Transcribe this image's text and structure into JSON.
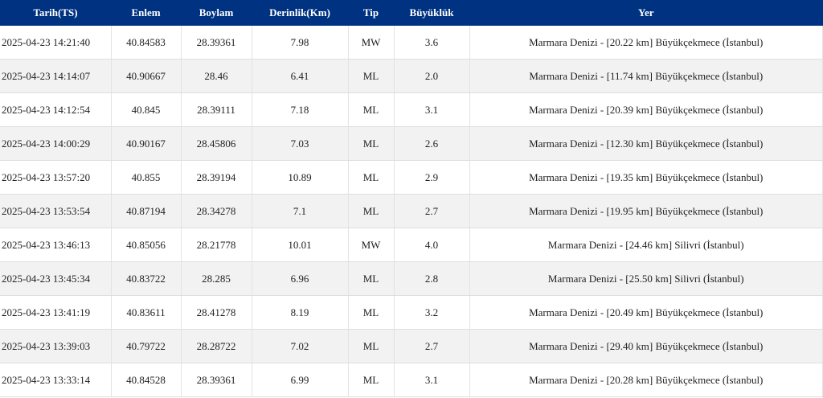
{
  "table": {
    "columns": [
      "Tarih(TS)",
      "Enlem",
      "Boylam",
      "Derinlik(Km)",
      "Tip",
      "Büyüklük",
      "Yer"
    ],
    "rows": [
      [
        "2025-04-23 14:21:40",
        "40.84583",
        "28.39361",
        "7.98",
        "MW",
        "3.6",
        "Marmara Denizi - [20.22 km] Büyükçekmece (İstanbul)"
      ],
      [
        "2025-04-23 14:14:07",
        "40.90667",
        "28.46",
        "6.41",
        "ML",
        "2.0",
        "Marmara Denizi - [11.74 km] Büyükçekmece (İstanbul)"
      ],
      [
        "2025-04-23 14:12:54",
        "40.845",
        "28.39111",
        "7.18",
        "ML",
        "3.1",
        "Marmara Denizi - [20.39 km] Büyükçekmece (İstanbul)"
      ],
      [
        "2025-04-23 14:00:29",
        "40.90167",
        "28.45806",
        "7.03",
        "ML",
        "2.6",
        "Marmara Denizi - [12.30 km] Büyükçekmece (İstanbul)"
      ],
      [
        "2025-04-23 13:57:20",
        "40.855",
        "28.39194",
        "10.89",
        "ML",
        "2.9",
        "Marmara Denizi - [19.35 km] Büyükçekmece (İstanbul)"
      ],
      [
        "2025-04-23 13:53:54",
        "40.87194",
        "28.34278",
        "7.1",
        "ML",
        "2.7",
        "Marmara Denizi - [19.95 km] Büyükçekmece (İstanbul)"
      ],
      [
        "2025-04-23 13:46:13",
        "40.85056",
        "28.21778",
        "10.01",
        "MW",
        "4.0",
        "Marmara Denizi - [24.46 km] Silivri (İstanbul)"
      ],
      [
        "2025-04-23 13:45:34",
        "40.83722",
        "28.285",
        "6.96",
        "ML",
        "2.8",
        "Marmara Denizi - [25.50 km] Silivri (İstanbul)"
      ],
      [
        "2025-04-23 13:41:19",
        "40.83611",
        "28.41278",
        "8.19",
        "ML",
        "3.2",
        "Marmara Denizi - [20.49 km] Büyükçekmece (İstanbul)"
      ],
      [
        "2025-04-23 13:39:03",
        "40.79722",
        "28.28722",
        "7.02",
        "ML",
        "2.7",
        "Marmara Denizi - [29.40 km] Büyükçekmece (İstanbul)"
      ],
      [
        "2025-04-23 13:33:14",
        "40.84528",
        "28.39361",
        "6.99",
        "ML",
        "3.1",
        "Marmara Denizi - [20.28 km] Büyükçekmece (İstanbul)"
      ]
    ]
  },
  "colors": {
    "header_bg": "#003282",
    "header_text": "#ffffff",
    "alt_row": "#f2f2f2"
  }
}
